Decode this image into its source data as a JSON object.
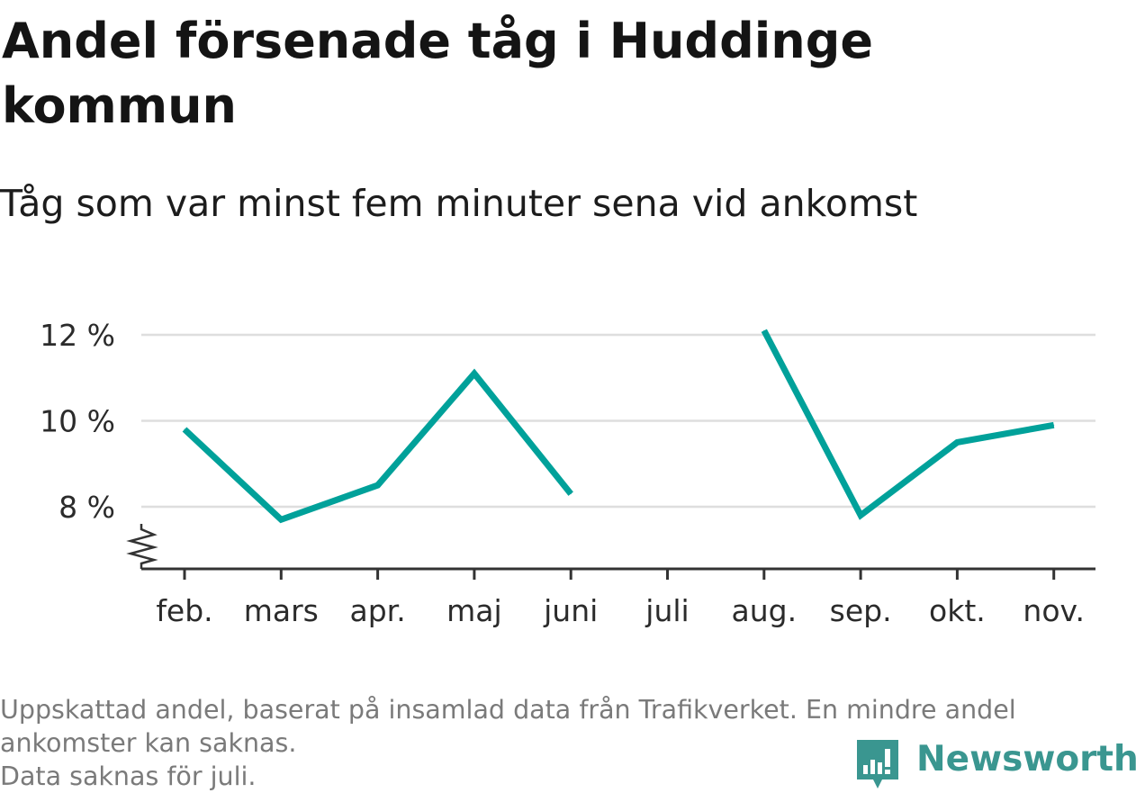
{
  "title": "Andel försenade tåg i Huddinge kommun",
  "subtitle": "Tåg som var minst fem minuter sena vid ankomst",
  "footer": {
    "note_line1": "Uppskattad andel, baserat på insamlad data från Trafikverket. En mindre andel",
    "note_line2": "ankomster kan saknas.",
    "note_line3": "Data saknas för juli."
  },
  "brand": {
    "name": "Newsworthy",
    "icon": "newsworthy-logo-icon",
    "color": "#3a9690"
  },
  "chart_data": {
    "type": "line",
    "categories": [
      "feb.",
      "mars",
      "apr.",
      "maj",
      "juni",
      "juli",
      "aug.",
      "sep.",
      "okt.",
      "nov."
    ],
    "series": [
      {
        "values": [
          9.8,
          7.7,
          8.5,
          11.1,
          8.3,
          null,
          12.1,
          7.8,
          9.5,
          9.9
        ],
        "color": "#00a19a"
      }
    ],
    "y_ticks": [
      8,
      10,
      12
    ],
    "y_tick_labels": [
      "8 %",
      "10 %",
      "12 %"
    ],
    "ylim": [
      6.6,
      12.3
    ],
    "axis_break": true,
    "grid": true,
    "legend": "none",
    "title": "Andel försenade tåg i Huddinge kommun",
    "xlabel": "",
    "ylabel": ""
  }
}
